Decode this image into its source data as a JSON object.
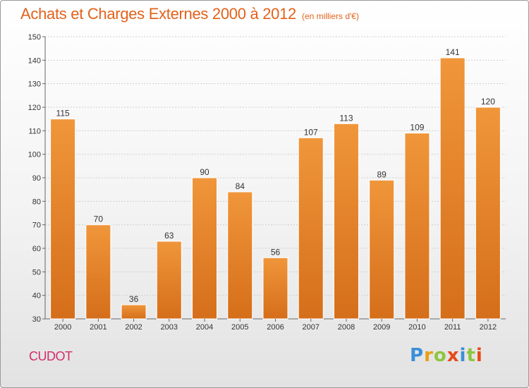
{
  "header": {
    "title": "Achats et Charges Externes 2000 à 2012",
    "subtitle": "(en milliers d'€)"
  },
  "footer": {
    "commune": "CUDOT",
    "logo_letters": [
      "P",
      "r",
      "o",
      "x",
      "i",
      "t",
      "i"
    ],
    "logo_colors": [
      "#3a8fd8",
      "#e6a016",
      "#8dc63f",
      "#e64a19",
      "#3a8fd8",
      "#8dc63f",
      "#e64a19"
    ]
  },
  "chart_data": {
    "type": "bar",
    "categories": [
      "2000",
      "2001",
      "2002",
      "2003",
      "2004",
      "2005",
      "2006",
      "2007",
      "2008",
      "2009",
      "2010",
      "2011",
      "2012"
    ],
    "values": [
      115,
      70,
      36,
      63,
      90,
      84,
      56,
      107,
      113,
      89,
      109,
      141,
      120
    ],
    "ylim": [
      30,
      150
    ],
    "yticks": [
      30,
      40,
      50,
      60,
      70,
      80,
      90,
      100,
      110,
      120,
      130,
      140,
      150
    ],
    "grid": true,
    "bar_color": "#f0963a",
    "bar_color_dark": "#d56e1a"
  }
}
